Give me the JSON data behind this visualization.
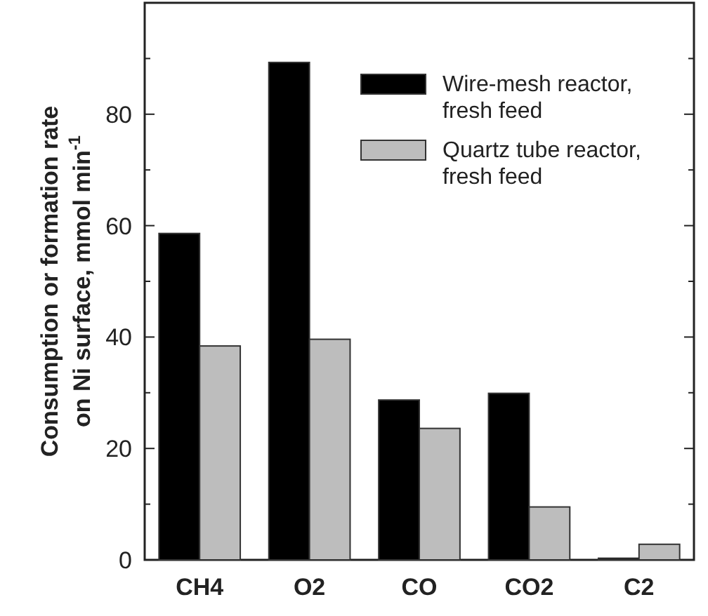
{
  "chart_data": {
    "type": "bar",
    "ylabel": "Consumption or formation rate\non Ni surface, mmol min$^{-1}$",
    "categories": [
      "CH4",
      "O2",
      "CO",
      "CO2",
      "C2"
    ],
    "series": [
      {
        "name": "Wire-mesh reactor,\nfresh feed",
        "color": "#000000",
        "values": [
          58.6,
          89.3,
          28.7,
          29.9,
          0.3
        ]
      },
      {
        "name": "Quartz tube reactor,\nfresh feed",
        "color": "#bdbdbd",
        "values": [
          38.4,
          39.6,
          23.6,
          9.5,
          2.8
        ]
      }
    ],
    "ylim": [
      0,
      100
    ],
    "yticks": [
      0,
      {
        "value": 10,
        "label": null
      },
      20,
      {
        "value": 30,
        "label": null
      },
      40,
      {
        "value": 50,
        "label": null
      },
      60,
      {
        "value": 70,
        "label": null
      },
      80,
      {
        "value": 90,
        "label": null
      }
    ],
    "legend": "top right",
    "grid": false
  }
}
